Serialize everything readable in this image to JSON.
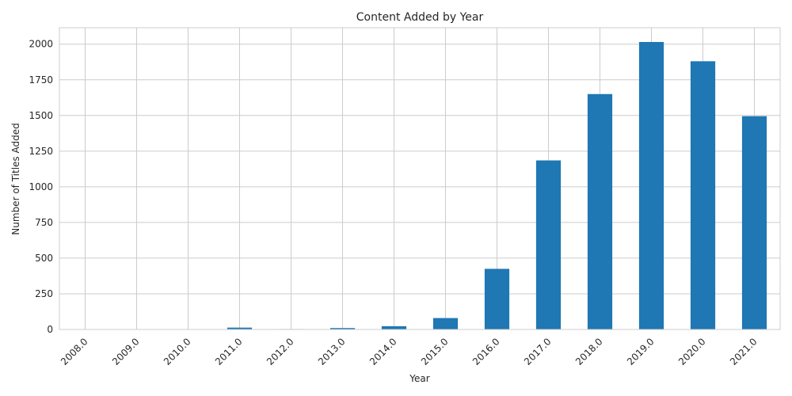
{
  "chart_data": {
    "type": "bar",
    "title": "Content Added by Year",
    "xlabel": "Year",
    "ylabel": "Number of Titles Added",
    "categories": [
      "2008.0",
      "2009.0",
      "2010.0",
      "2011.0",
      "2012.0",
      "2013.0",
      "2014.0",
      "2015.0",
      "2016.0",
      "2017.0",
      "2018.0",
      "2019.0",
      "2020.0",
      "2021.0"
    ],
    "values": [
      2,
      2,
      1,
      13,
      3,
      10,
      23,
      80,
      425,
      1185,
      1650,
      2015,
      1880,
      1495
    ],
    "ylim": [
      0,
      2115
    ],
    "yticks": [
      0,
      250,
      500,
      750,
      1000,
      1250,
      1500,
      1750,
      2000
    ],
    "ytick_labels": [
      "0",
      "250",
      "500",
      "750",
      "1000",
      "1250",
      "1500",
      "1750",
      "2000"
    ],
    "bar_color": "#1f77b4",
    "grid": true,
    "grid_color": "#cccccc"
  }
}
